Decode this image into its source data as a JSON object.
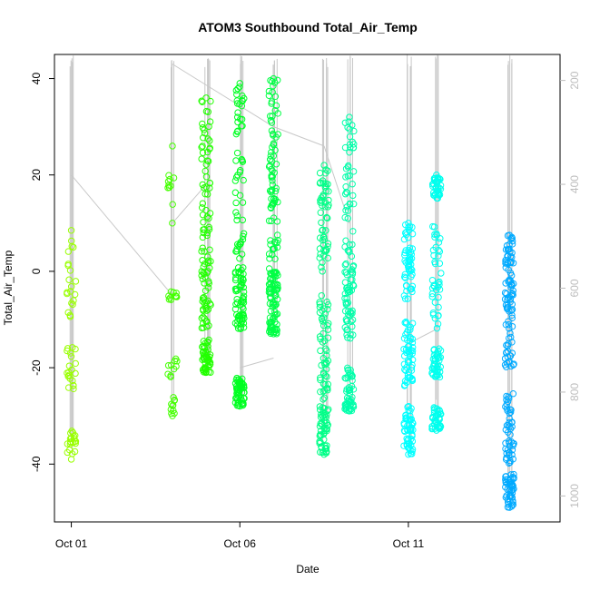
{
  "chart_data": {
    "type": "scatter",
    "title": "ATOM3 Southbound Total_Air_Temp",
    "xlabel": "Date",
    "ylabel": "Total_Air_Temp",
    "xlim": [
      "2016-09-30T12:00",
      "2016-10-15T12:00"
    ],
    "ylim": [
      -52,
      45
    ],
    "x_ticks": [
      "Oct 01",
      "Oct 06",
      "Oct 11"
    ],
    "x_tick_values": [
      "2016-10-01T00:00",
      "2016-10-06T00:00",
      "2016-10-11T00:00"
    ],
    "y_ticks": [
      40,
      20,
      0,
      -20,
      -40
    ],
    "right_axis": {
      "ticks": [
        200,
        400,
        600,
        800,
        1000
      ],
      "ylim": [
        1050,
        150
      ],
      "color": "#bdbdbd",
      "reversed": true
    },
    "grey_series_color": "#c8c8c8",
    "marker": "open-circle",
    "series": [
      {
        "date": "2016-10-01T00:00",
        "color": "#99ff00",
        "ymin": -39,
        "ymax": 8.5,
        "samples": 60,
        "clusters": [
          [
            -38,
            -33
          ],
          [
            -10,
            7
          ],
          [
            -25,
            -15
          ]
        ]
      },
      {
        "date": "2016-10-04T00:00",
        "color": "#44ff00",
        "ymin": -30,
        "ymax": 26,
        "samples": 40,
        "clusters": [
          [
            -30,
            -26
          ],
          [
            -6,
            -4
          ],
          [
            10,
            26
          ],
          [
            -22,
            -18
          ]
        ]
      },
      {
        "date": "2016-10-05T00:00",
        "color": "#22ff00",
        "ymin": -21,
        "ymax": 36,
        "samples": 150,
        "clusters": [
          [
            -21,
            -14
          ],
          [
            -12,
            5
          ],
          [
            5,
            36
          ]
        ]
      },
      {
        "date": "2016-10-06T00:00",
        "color": "#00ff22",
        "ymin": -28,
        "ymax": 39,
        "samples": 170,
        "clusters": [
          [
            -28,
            -22
          ],
          [
            -12,
            0
          ],
          [
            0,
            39
          ]
        ]
      },
      {
        "date": "2016-10-07T00:00",
        "color": "#00ff44",
        "ymin": -13,
        "ymax": 40,
        "samples": 170,
        "clusters": [
          [
            -13,
            0
          ],
          [
            0,
            40
          ]
        ]
      },
      {
        "date": "2016-10-08T12:00",
        "color": "#00ff88",
        "ymin": -38,
        "ymax": 22,
        "samples": 160,
        "clusters": [
          [
            -38,
            -28
          ],
          [
            -27,
            -5
          ],
          [
            0,
            22
          ]
        ]
      },
      {
        "date": "2016-10-09T06:00",
        "color": "#00ffaa",
        "ymin": -29,
        "ymax": 32,
        "samples": 150,
        "clusters": [
          [
            -29,
            -20
          ],
          [
            -14,
            0
          ],
          [
            0,
            32
          ]
        ]
      },
      {
        "date": "2016-10-11T00:00",
        "color": "#00ffff",
        "ymin": -38,
        "ymax": 10,
        "samples": 160,
        "clusters": [
          [
            -38,
            -28
          ],
          [
            -24,
            -10
          ],
          [
            -6,
            10
          ]
        ]
      },
      {
        "date": "2016-10-11T20:00",
        "color": "#00ffee",
        "ymin": -33,
        "ymax": 20,
        "samples": 160,
        "clusters": [
          [
            -33,
            -28
          ],
          [
            -22,
            -16
          ],
          [
            -12,
            10
          ],
          [
            15,
            20
          ]
        ]
      },
      {
        "date": "2016-10-14T00:00",
        "color": "#00aaff",
        "ymin": -49,
        "ymax": 7.5,
        "samples": 190,
        "clusters": [
          [
            -49,
            -42
          ],
          [
            -40,
            -25
          ],
          [
            -20,
            -5
          ],
          [
            -5,
            7.5
          ]
        ]
      }
    ]
  }
}
